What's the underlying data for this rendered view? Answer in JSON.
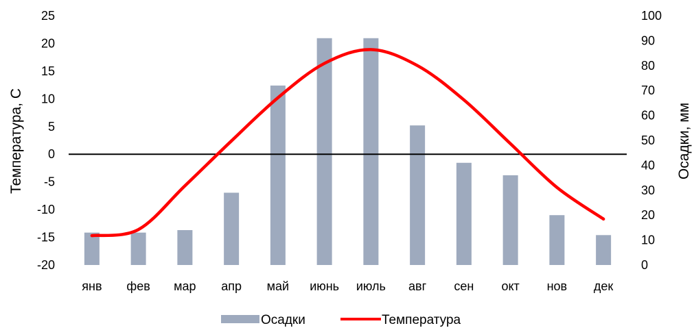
{
  "chart_data": {
    "type": "bar+line",
    "categories": [
      "янв",
      "фев",
      "мар",
      "апр",
      "май",
      "июнь",
      "июль",
      "авг",
      "сен",
      "окт",
      "нов",
      "дек"
    ],
    "series": [
      {
        "name": "Осадки",
        "type": "bar",
        "axis": "right",
        "color": "#9eaabe",
        "values": [
          13,
          13,
          14,
          29,
          72,
          91,
          91,
          56,
          41,
          36,
          20,
          12
        ]
      },
      {
        "name": "Температура",
        "type": "line",
        "axis": "left",
        "color": "#ff0000",
        "smooth": true,
        "values": [
          -14.7,
          -13.6,
          -5.7,
          2.4,
          10.2,
          16.4,
          18.9,
          16.0,
          9.8,
          1.9,
          -6.0,
          -11.7
        ]
      }
    ],
    "y_left": {
      "label": "Температура, С",
      "ylim": [
        -20,
        25
      ],
      "ticks": [
        "25",
        "20",
        "15",
        "10",
        "5",
        "0",
        "-5",
        "-10",
        "-15",
        "-20"
      ]
    },
    "y_right": {
      "label": "Осадки, мм",
      "ylim": [
        0,
        100
      ],
      "ticks": [
        "100",
        "90",
        "80",
        "70",
        "60",
        "50",
        "40",
        "30",
        "20",
        "10",
        "0"
      ]
    },
    "zero_line": true,
    "grid": false,
    "legend": {
      "position": "bottom",
      "entries": [
        "Осадки",
        "Температура"
      ]
    }
  }
}
